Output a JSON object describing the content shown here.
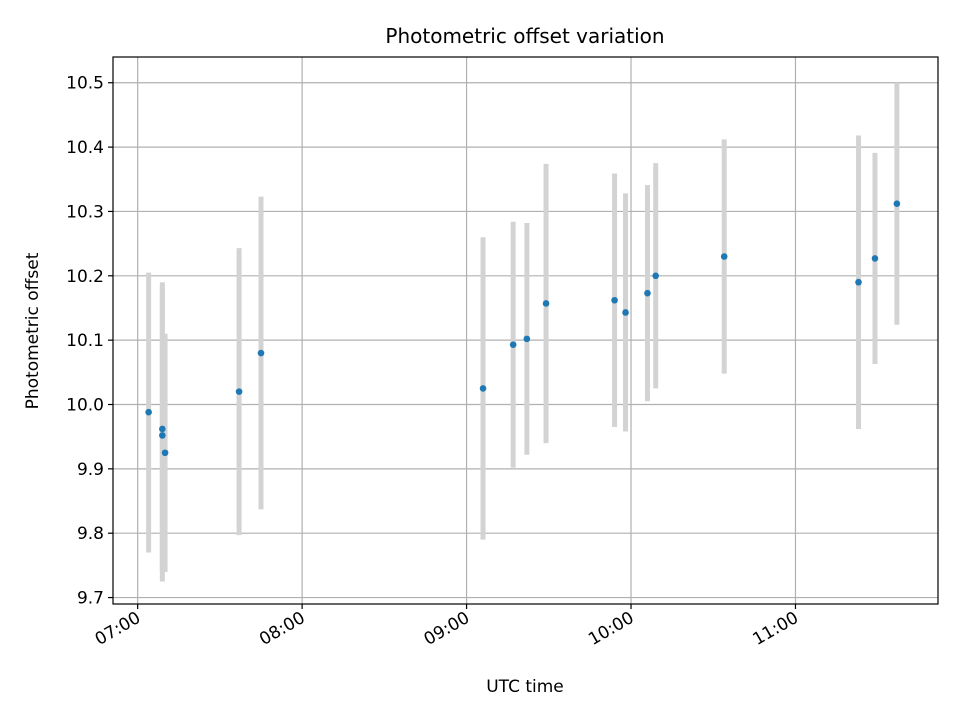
{
  "chart_data": {
    "type": "scatter",
    "title": "Photometric offset variation",
    "xlabel": "UTC time",
    "ylabel": "Photometric offset",
    "x_axis_kind": "time",
    "xlim": [
      "06:51",
      "11:52"
    ],
    "ylim": [
      9.69,
      10.54
    ],
    "x_ticks": [
      "07:00",
      "08:00",
      "09:00",
      "10:00",
      "11:00"
    ],
    "y_ticks": [
      "9.7",
      "9.8",
      "9.9",
      "10.0",
      "10.1",
      "10.2",
      "10.3",
      "10.4",
      "10.5"
    ],
    "grid": true,
    "legend": "none",
    "series": [
      {
        "marker_color": "#1f77b4",
        "errorbar_color": "#d3d3d3",
        "points": [
          {
            "x": "07:04",
            "y": 9.988,
            "y_low": 9.77,
            "y_high": 10.205
          },
          {
            "x": "07:09",
            "y": 9.962,
            "y_low": 9.74,
            "y_high": 10.19
          },
          {
            "x": "07:09",
            "y": 9.952,
            "y_low": 9.725,
            "y_high": 10.18
          },
          {
            "x": "07:10",
            "y": 9.925,
            "y_low": 9.74,
            "y_high": 10.11
          },
          {
            "x": "07:37",
            "y": 10.02,
            "y_low": 9.797,
            "y_high": 10.243
          },
          {
            "x": "07:45",
            "y": 10.08,
            "y_low": 9.837,
            "y_high": 10.323
          },
          {
            "x": "09:06",
            "y": 10.025,
            "y_low": 9.79,
            "y_high": 10.26
          },
          {
            "x": "09:17",
            "y": 10.093,
            "y_low": 9.902,
            "y_high": 10.284
          },
          {
            "x": "09:22",
            "y": 10.102,
            "y_low": 9.922,
            "y_high": 10.282
          },
          {
            "x": "09:29",
            "y": 10.157,
            "y_low": 9.94,
            "y_high": 10.374
          },
          {
            "x": "09:54",
            "y": 10.162,
            "y_low": 9.965,
            "y_high": 10.359
          },
          {
            "x": "09:58",
            "y": 10.143,
            "y_low": 9.958,
            "y_high": 10.328
          },
          {
            "x": "10:06",
            "y": 10.173,
            "y_low": 10.005,
            "y_high": 10.341
          },
          {
            "x": "10:09",
            "y": 10.2,
            "y_low": 10.025,
            "y_high": 10.375
          },
          {
            "x": "10:34",
            "y": 10.23,
            "y_low": 10.048,
            "y_high": 10.412
          },
          {
            "x": "11:23",
            "y": 10.19,
            "y_low": 9.962,
            "y_high": 10.418
          },
          {
            "x": "11:29",
            "y": 10.227,
            "y_low": 10.063,
            "y_high": 10.391
          },
          {
            "x": "11:37",
            "y": 10.312,
            "y_low": 10.124,
            "y_high": 10.5
          }
        ]
      }
    ]
  }
}
